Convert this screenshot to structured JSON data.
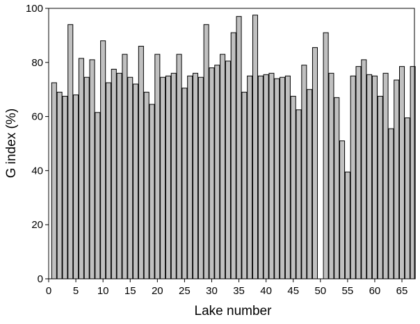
{
  "chart_data": {
    "type": "bar",
    "xlabel": "Lake number",
    "ylabel": "G index (%)",
    "x": [
      1,
      2,
      3,
      4,
      5,
      6,
      7,
      8,
      9,
      10,
      11,
      12,
      13,
      14,
      15,
      16,
      17,
      18,
      19,
      20,
      21,
      22,
      23,
      24,
      25,
      26,
      27,
      28,
      29,
      30,
      31,
      32,
      33,
      34,
      35,
      36,
      37,
      38,
      39,
      40,
      41,
      42,
      43,
      44,
      45,
      46,
      47,
      48,
      49,
      50,
      51,
      52,
      53,
      54,
      55,
      56,
      57,
      58,
      59,
      60,
      61,
      62,
      63,
      64,
      65,
      66,
      67
    ],
    "values": [
      72.5,
      69,
      67.5,
      94,
      68,
      81.5,
      74.5,
      81,
      61.5,
      88,
      72.5,
      77.5,
      76,
      83,
      74.5,
      72,
      86,
      69,
      64.5,
      83,
      74.5,
      75,
      76,
      83,
      70.5,
      75,
      76,
      74.5,
      94,
      78,
      79,
      83,
      80.5,
      91,
      97,
      69,
      75,
      97.5,
      75,
      75.5,
      76,
      74,
      74.5,
      75,
      67.5,
      62.5,
      79,
      70,
      85.5,
      null,
      91,
      76,
      67,
      51,
      39.5,
      75,
      78.5,
      81,
      75.5,
      75,
      67.5,
      76,
      55.5,
      73.5,
      78.5,
      59.5,
      78.5
    ],
    "color": "#c0c0c0",
    "xlim": [
      0,
      67.3
    ],
    "xticks": [
      0,
      5,
      10,
      15,
      20,
      25,
      30,
      35,
      40,
      45,
      50,
      55,
      60,
      65
    ],
    "ylim": [
      0,
      100
    ],
    "yticks": [
      0,
      20,
      40,
      60,
      80,
      100
    ]
  }
}
